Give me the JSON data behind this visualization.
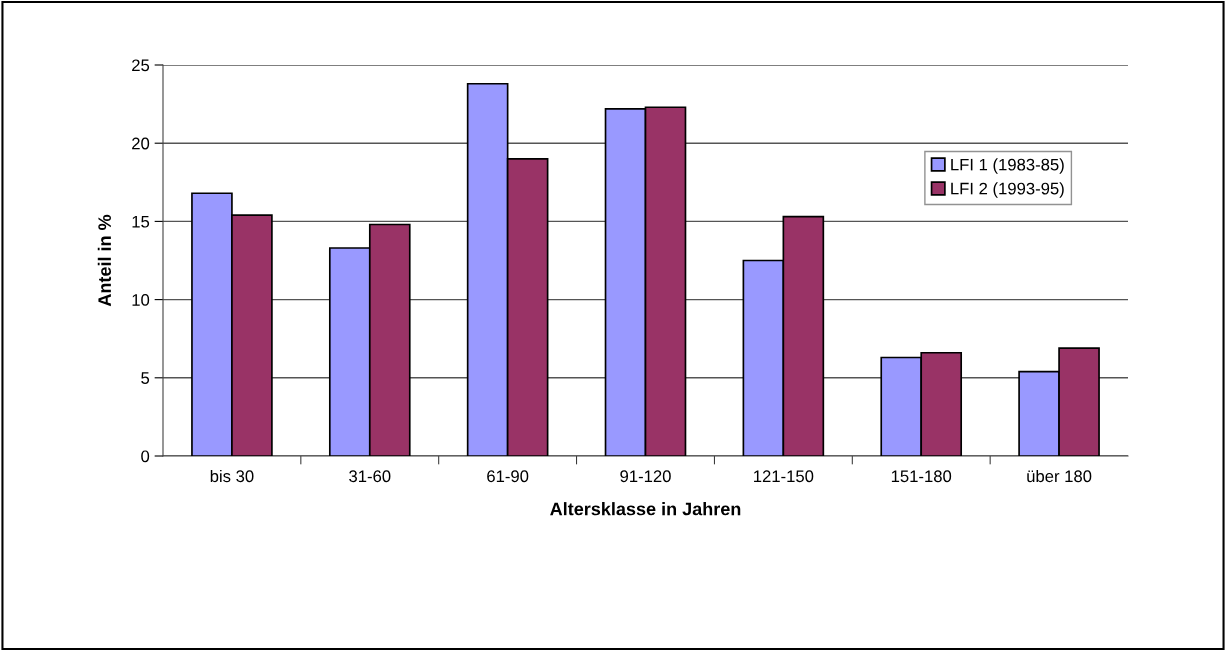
{
  "chart_data": {
    "type": "bar",
    "xlabel": "Altersklasse in Jahren",
    "ylabel": "Anteil in %",
    "categories": [
      "bis 30",
      "31-60",
      "61-90",
      "91-120",
      "121-150",
      "151-180",
      "über 180"
    ],
    "series": [
      {
        "name": "LFI 1 (1983-85)",
        "color": "#9999ff",
        "values": [
          16.8,
          13.3,
          23.8,
          22.2,
          12.5,
          6.3,
          5.4
        ]
      },
      {
        "name": "LFI 2 (1993-95)",
        "color": "#993366",
        "values": [
          15.4,
          14.8,
          19.0,
          22.3,
          15.3,
          6.6,
          6.9
        ]
      }
    ],
    "ylim": [
      0,
      25
    ],
    "yticks": [
      0,
      5,
      10,
      15,
      20,
      25
    ],
    "grid": "y",
    "legend": "top right"
  }
}
